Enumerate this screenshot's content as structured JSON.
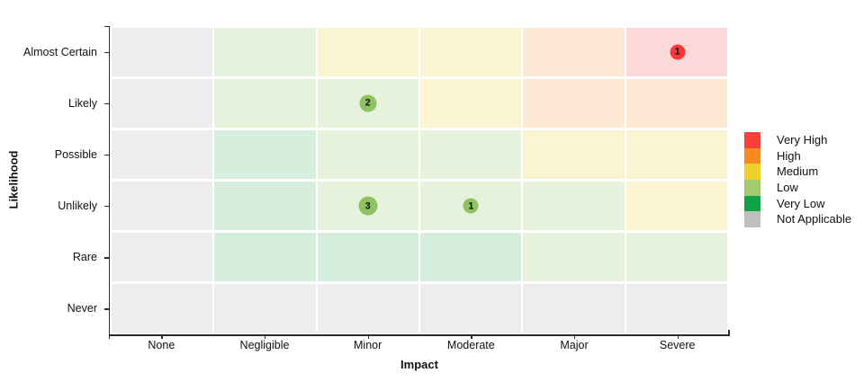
{
  "chart_data": {
    "type": "heatmap",
    "title": "",
    "xlabel": "Impact",
    "ylabel": "Likelihood",
    "legend_position": "right",
    "grid": "white gaps between cells",
    "x_categories": [
      "None",
      "Negligible",
      "Minor",
      "Moderate",
      "Major",
      "Severe"
    ],
    "y_categories": [
      "Almost Certain",
      "Likely",
      "Possible",
      "Unlikely",
      "Rare",
      "Never"
    ],
    "cell_ratings": [
      [
        "not-applicable",
        "low",
        "medium",
        "medium",
        "high",
        "very-high"
      ],
      [
        "not-applicable",
        "low",
        "low",
        "medium",
        "high",
        "high"
      ],
      [
        "not-applicable",
        "very-low",
        "low",
        "low",
        "medium",
        "medium"
      ],
      [
        "not-applicable",
        "very-low",
        "low",
        "low",
        "low",
        "medium"
      ],
      [
        "not-applicable",
        "very-low",
        "very-low",
        "very-low",
        "low",
        "low"
      ],
      [
        "not-applicable",
        "not-applicable",
        "not-applicable",
        "not-applicable",
        "not-applicable",
        "not-applicable"
      ]
    ],
    "cell_colors": {
      "very-high": "#FDD8D9",
      "high": "#FDE8D3",
      "medium": "#FBF4D1",
      "low": "#E7F2DC",
      "very-low": "#D6EEDE",
      "not-applicable": "#EDEDED"
    },
    "points": [
      {
        "label": "1",
        "x": "Severe",
        "y": "Almost Certain",
        "rating": "very-high",
        "count": 1,
        "color": "#F8383B",
        "diameter": 17
      },
      {
        "label": "2",
        "x": "Minor",
        "y": "Likely",
        "rating": "low",
        "count": 2,
        "color": "#8FC261",
        "diameter": 19
      },
      {
        "label": "3",
        "x": "Minor",
        "y": "Unlikely",
        "rating": "low",
        "count": 3,
        "color": "#8FC261",
        "diameter": 21
      },
      {
        "label": "1",
        "x": "Moderate",
        "y": "Unlikely",
        "rating": "low",
        "count": 1,
        "color": "#8FC261",
        "diameter": 17
      }
    ],
    "legend": [
      {
        "id": "very-high",
        "label": "Very High",
        "color": "#F9413A"
      },
      {
        "id": "high",
        "label": "High",
        "color": "#F68B1F"
      },
      {
        "id": "medium",
        "label": "Medium",
        "color": "#EDD02B"
      },
      {
        "id": "low",
        "label": "Low",
        "color": "#A2CB6E"
      },
      {
        "id": "very-low",
        "label": "Very Low",
        "color": "#12A34A"
      },
      {
        "id": "not-applicable",
        "label": "Not Applicable",
        "color": "#BFBFBF"
      }
    ]
  }
}
